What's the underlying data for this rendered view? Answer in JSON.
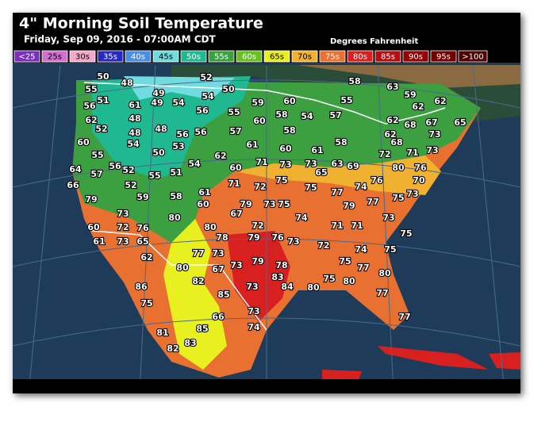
{
  "header": {
    "title": "4\" Morning Soil Temperature",
    "subtitle": "Friday, Sep 09, 2016 - 07:00AM CDT",
    "units": "Degrees Fahrenheit"
  },
  "legend": {
    "items": [
      {
        "label": "<25",
        "color": "#7b2fbe"
      },
      {
        "label": "25s",
        "color": "#d070d0"
      },
      {
        "label": "30s",
        "color": "#f4a8cc"
      },
      {
        "label": "35s",
        "color": "#2828c0"
      },
      {
        "label": "40s",
        "color": "#4a8ee4"
      },
      {
        "label": "45s",
        "color": "#70dce0"
      },
      {
        "label": "50s",
        "color": "#20b890"
      },
      {
        "label": "55s",
        "color": "#3ca040"
      },
      {
        "label": "60s",
        "color": "#68c020"
      },
      {
        "label": "65s",
        "color": "#e8f020"
      },
      {
        "label": "70s",
        "color": "#f0b030"
      },
      {
        "label": "75s",
        "color": "#e87030"
      },
      {
        "label": "80s",
        "color": "#d82020"
      },
      {
        "label": "85s",
        "color": "#b01010"
      },
      {
        "label": "90s",
        "color": "#900000"
      },
      {
        "label": "95s",
        "color": "#700000"
      },
      {
        "label": ">100",
        "color": "#500000"
      }
    ]
  },
  "map": {
    "readings": [
      50,
      48,
      52,
      55,
      51,
      61,
      49,
      49,
      54,
      54,
      50,
      56,
      62,
      52,
      48,
      48,
      54,
      48,
      56,
      56,
      56,
      53,
      50,
      60,
      55,
      64,
      57,
      56,
      52,
      55,
      51,
      54,
      52,
      59,
      66,
      79,
      58,
      61,
      60,
      62,
      60,
      55,
      57,
      61,
      59,
      60,
      60,
      58,
      54,
      57,
      58,
      60,
      61,
      58,
      58,
      55,
      63,
      59,
      62,
      62,
      62,
      68,
      62,
      68,
      67,
      65,
      73,
      73,
      71,
      80,
      76,
      70,
      72,
      69,
      63,
      73,
      65,
      71,
      73,
      71,
      72,
      75,
      75,
      77,
      74,
      76,
      75,
      73,
      74,
      75,
      73,
      79,
      67,
      72,
      80,
      78,
      79,
      76,
      73,
      72,
      71,
      71,
      79,
      77,
      73,
      75,
      75,
      74,
      75,
      77,
      80,
      77,
      77,
      75,
      80,
      80,
      84,
      83,
      78,
      79,
      73,
      73,
      77,
      73,
      67,
      80,
      82,
      85,
      73,
      74,
      66,
      85,
      83,
      82,
      81,
      75,
      86,
      62,
      65,
      73,
      76,
      72,
      73,
      60,
      61,
      80
    ]
  }
}
